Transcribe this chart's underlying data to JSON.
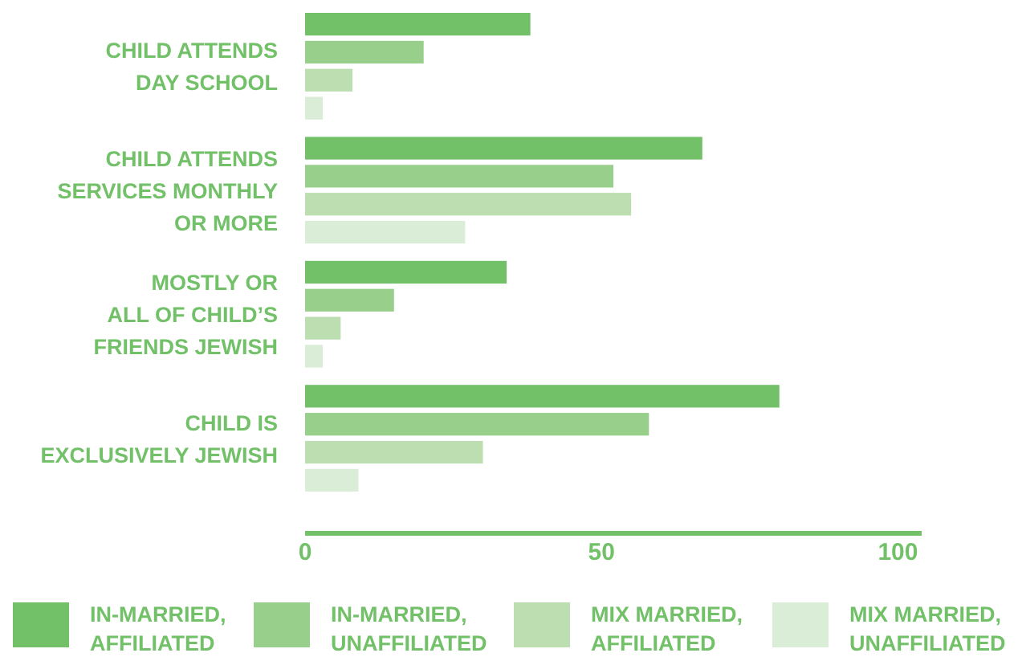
{
  "chart_data": {
    "type": "bar",
    "orientation": "horizontal",
    "categories": [
      "CHILD ATTENDS\nDAY SCHOOL",
      "CHILD ATTENDS\nSERVICES MONTHLY\nOR MORE",
      "MOSTLY OR\nALL OF CHILD’S\nFRIENDS JEWISH",
      "CHILD IS\nEXCLUSIVELY JEWISH"
    ],
    "series": [
      {
        "name": "IN-MARRIED,\nAFFILIATED",
        "color": "#72c169",
        "values": [
          38,
          67,
          34,
          80
        ]
      },
      {
        "name": "IN-MARRIED,\nUNAFFILIATED",
        "color": "#98cf8b",
        "values": [
          20,
          52,
          15,
          58
        ]
      },
      {
        "name": "MIX MARRIED,\nAFFILIATED",
        "color": "#bcdeb0",
        "values": [
          8,
          55,
          6,
          30
        ]
      },
      {
        "name": "MIX MARRIED,\nUNAFFILIATED",
        "color": "#daedd6",
        "values": [
          3,
          27,
          3,
          9
        ]
      }
    ],
    "xlim": [
      0,
      104
    ],
    "xticks": [
      0,
      50,
      100
    ],
    "grid": false,
    "legend": "bottom"
  }
}
